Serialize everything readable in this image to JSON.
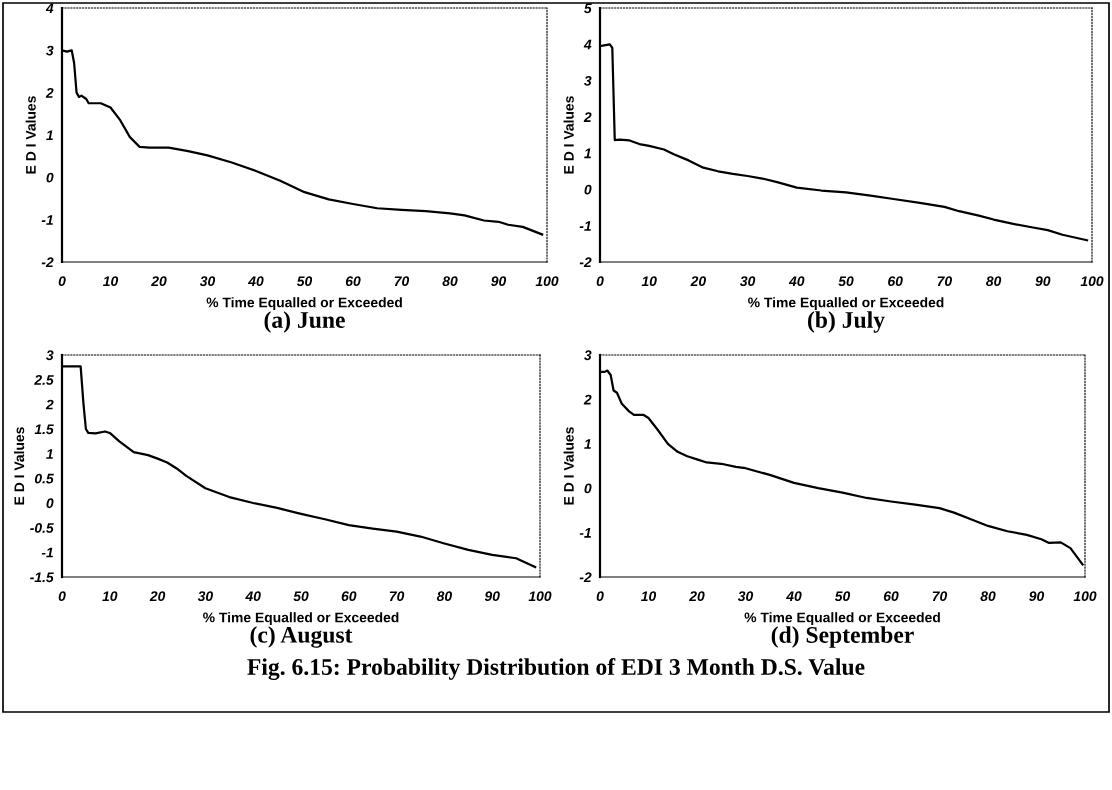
{
  "chart_data": [
    {
      "type": "line",
      "title": "(a) June",
      "xlabel": "% Time Equalled or Exceeded",
      "ylabel": "E D I Values",
      "xlim": [
        0,
        100
      ],
      "xticks": [
        0,
        10,
        20,
        30,
        40,
        50,
        60,
        70,
        80,
        90,
        100
      ],
      "ylim": [
        -2,
        4
      ],
      "yticks": [
        -2,
        -1,
        0,
        1,
        2,
        3,
        4
      ],
      "grid": false,
      "legend": false,
      "series": [
        {
          "color": "#000000",
          "x": [
            0,
            1,
            2,
            2.5,
            3,
            3.5,
            4,
            5,
            5.5,
            8,
            10,
            12,
            14,
            16,
            18,
            22,
            26,
            30,
            35,
            40,
            45,
            50,
            55,
            60,
            65,
            70,
            75,
            80,
            83,
            87,
            90,
            92,
            95,
            99
          ],
          "values": [
            3,
            2.97,
            3.0,
            2.7,
            2.0,
            1.9,
            1.93,
            1.85,
            1.75,
            1.75,
            1.65,
            1.35,
            0.95,
            0.72,
            0.7,
            0.7,
            0.62,
            0.52,
            0.35,
            0.15,
            -0.08,
            -0.35,
            -0.52,
            -0.63,
            -0.73,
            -0.77,
            -0.8,
            -0.85,
            -0.9,
            -1.02,
            -1.05,
            -1.12,
            -1.17,
            -1.35
          ]
        }
      ]
    },
    {
      "type": "line",
      "title": "(b) July",
      "xlabel": "% Time Equalled or Exceeded",
      "ylabel": "E D I Values",
      "xlim": [
        0,
        100
      ],
      "xticks": [
        0,
        10,
        20,
        30,
        40,
        50,
        60,
        70,
        80,
        90,
        100
      ],
      "ylim": [
        -2,
        5
      ],
      "yticks": [
        -2,
        -1,
        0,
        1,
        2,
        3,
        4,
        5
      ],
      "grid": false,
      "legend": false,
      "series": [
        {
          "color": "#000000",
          "x": [
            0,
            2,
            2.5,
            3,
            4,
            6,
            8,
            10,
            13,
            15,
            18,
            21,
            24,
            27,
            30,
            33,
            36,
            40,
            45,
            50,
            55,
            60,
            65,
            70,
            73,
            77,
            80,
            84,
            88,
            91,
            94,
            99
          ],
          "values": [
            3.95,
            4.0,
            3.9,
            1.36,
            1.37,
            1.35,
            1.25,
            1.2,
            1.1,
            0.97,
            0.8,
            0.6,
            0.5,
            0.43,
            0.37,
            0.3,
            0.2,
            0.05,
            -0.03,
            -0.08,
            -0.17,
            -0.27,
            -0.37,
            -0.48,
            -0.6,
            -0.72,
            -0.83,
            -0.95,
            -1.05,
            -1.12,
            -1.25,
            -1.4
          ]
        }
      ]
    },
    {
      "type": "line",
      "title": "(c) August",
      "xlabel": "% Time Equalled or Exceeded",
      "ylabel": "E D I Values",
      "xlim": [
        0,
        100
      ],
      "xticks": [
        0,
        10,
        20,
        30,
        40,
        50,
        60,
        70,
        80,
        90,
        100
      ],
      "ylim": [
        -1.5,
        3
      ],
      "yticks": [
        -1.5,
        -1,
        -0.5,
        0,
        0.5,
        1,
        1.5,
        2,
        2.5,
        3
      ],
      "grid": false,
      "legend": false,
      "series": [
        {
          "color": "#000000",
          "x": [
            0,
            3.9,
            4.5,
            5,
            5.5,
            7,
            9,
            10,
            12,
            15,
            18,
            20,
            22,
            24,
            26,
            30,
            35,
            40,
            45,
            50,
            55,
            60,
            65,
            70,
            75,
            80,
            85,
            90,
            95,
            99
          ],
          "values": [
            2.77,
            2.77,
            2.0,
            1.5,
            1.42,
            1.41,
            1.45,
            1.42,
            1.25,
            1.03,
            0.97,
            0.9,
            0.82,
            0.7,
            0.55,
            0.3,
            0.12,
            0.0,
            -0.1,
            -0.22,
            -0.33,
            -0.45,
            -0.52,
            -0.58,
            -0.68,
            -0.82,
            -0.95,
            -1.05,
            -1.12,
            -1.3
          ]
        }
      ]
    },
    {
      "type": "line",
      "title": "(d) September",
      "xlabel": "% Time Equalled or Exceeded",
      "ylabel": "E D I Values",
      "xlim": [
        0,
        100
      ],
      "xticks": [
        0,
        10,
        20,
        30,
        40,
        50,
        60,
        70,
        80,
        90,
        100
      ],
      "ylim": [
        -2,
        3
      ],
      "yticks": [
        -2,
        -1,
        0,
        1,
        2,
        3
      ],
      "grid": false,
      "legend": false,
      "annotations": [
        "Fig. 6.15: Probability Distribution of EDI 3 Month D.S. Value"
      ],
      "series": [
        {
          "color": "#000000",
          "x": [
            0,
            1,
            1.5,
            2.2,
            2.8,
            3.5,
            4.5,
            6,
            7,
            9,
            10,
            12,
            14,
            16,
            18,
            20,
            22,
            25,
            28,
            30,
            35,
            40,
            45,
            50,
            55,
            60,
            65,
            70,
            73,
            77,
            80,
            84,
            88,
            91,
            92.5,
            95,
            97,
            99.5
          ],
          "values": [
            2.62,
            2.62,
            2.65,
            2.55,
            2.2,
            2.15,
            1.9,
            1.73,
            1.65,
            1.65,
            1.58,
            1.3,
            1.0,
            0.82,
            0.72,
            0.65,
            0.58,
            0.55,
            0.48,
            0.45,
            0.3,
            0.12,
            0.0,
            -0.1,
            -0.22,
            -0.3,
            -0.37,
            -0.45,
            -0.55,
            -0.72,
            -0.85,
            -0.97,
            -1.05,
            -1.15,
            -1.23,
            -1.22,
            -1.35,
            -1.72
          ]
        }
      ]
    }
  ]
}
